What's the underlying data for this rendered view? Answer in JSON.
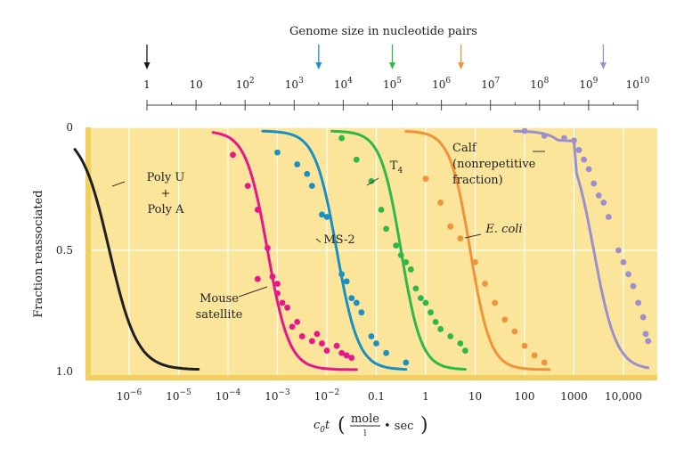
{
  "chart_data": {
    "type": "line",
    "genome_axis": {
      "title": "Genome size in nucleotide pairs",
      "ticks": [
        {
          "exp": 0,
          "base": "1",
          "sup": ""
        },
        {
          "exp": 1,
          "base": "10",
          "sup": ""
        },
        {
          "exp": 2,
          "base": "10",
          "sup": "2"
        },
        {
          "exp": 3,
          "base": "10",
          "sup": "3"
        },
        {
          "exp": 4,
          "base": "10",
          "sup": "4"
        },
        {
          "exp": 5,
          "base": "10",
          "sup": "5"
        },
        {
          "exp": 6,
          "base": "10",
          "sup": "6"
        },
        {
          "exp": 7,
          "base": "10",
          "sup": "7"
        },
        {
          "exp": 8,
          "base": "10",
          "sup": "8"
        },
        {
          "exp": 9,
          "base": "10",
          "sup": "9"
        },
        {
          "exp": 10,
          "base": "10",
          "sup": "10"
        }
      ],
      "markers": [
        {
          "log_size": 0,
          "color": "#1a1a1a"
        },
        {
          "log_size": 3.5,
          "color": "#1a8fc2"
        },
        {
          "log_size": 5,
          "color": "#2fb84a"
        },
        {
          "log_size": 6.4,
          "color": "#f0933b"
        },
        {
          "log_size": 9.3,
          "color": "#9b8fcc"
        }
      ]
    },
    "x_axis": {
      "label_main": "c",
      "label_sub": "0",
      "label_t": "t",
      "unit_num": "mole",
      "unit_den": "l",
      "unit_tail": "• sec",
      "scale": "log",
      "ticks": [
        {
          "log": -6,
          "base": "10",
          "sup": "−6"
        },
        {
          "log": -5,
          "base": "10",
          "sup": "−5"
        },
        {
          "log": -4,
          "base": "10",
          "sup": "−4"
        },
        {
          "log": -3,
          "base": "10",
          "sup": "−3"
        },
        {
          "log": -2,
          "base": "10",
          "sup": "−2"
        },
        {
          "log": -1,
          "base": "0.1",
          "sup": ""
        },
        {
          "log": 0,
          "base": "1",
          "sup": ""
        },
        {
          "log": 1,
          "base": "10",
          "sup": ""
        },
        {
          "log": 2,
          "base": "100",
          "sup": ""
        },
        {
          "log": 3,
          "base": "1000",
          "sup": ""
        },
        {
          "log": 4,
          "base": "10,000",
          "sup": ""
        }
      ]
    },
    "y_axis": {
      "label": "Fraction reassociated",
      "ticks": [
        {
          "value": 0,
          "text": "0"
        },
        {
          "value": 0.5,
          "text": "0.5"
        },
        {
          "value": 1.0,
          "text": "1.0"
        }
      ]
    },
    "colors": {
      "background": "#fbe59a",
      "grid": "#ffffff",
      "left_band": "#f2d060"
    },
    "series": [
      {
        "name": "Poly U + Poly A",
        "color": "#1f1f1f",
        "center": -6.4,
        "width": 0.62,
        "from": -7.1,
        "to": -4.6,
        "points": []
      },
      {
        "name": "Mouse satellite",
        "color": "#e8168a",
        "center": -3.2,
        "width": 0.48,
        "from": -4.3,
        "to": -1.4,
        "points": [
          [
            -3.9,
            0.1
          ],
          [
            -3.6,
            0.23
          ],
          [
            -3.4,
            0.33
          ],
          [
            -3.2,
            0.49
          ],
          [
            -3.1,
            0.61
          ],
          [
            -3.0,
            0.64
          ],
          [
            -2.9,
            0.72
          ],
          [
            -2.8,
            0.74
          ],
          [
            -2.7,
            0.82
          ],
          [
            -2.5,
            0.86
          ],
          [
            -2.3,
            0.88
          ],
          [
            -2.1,
            0.89
          ],
          [
            -2.0,
            0.92
          ],
          [
            -1.8,
            0.9
          ],
          [
            -1.7,
            0.93
          ],
          [
            -1.6,
            0.94
          ],
          [
            -1.5,
            0.95
          ],
          [
            -3.4,
            0.62
          ],
          [
            -3.0,
            0.68
          ],
          [
            -2.6,
            0.8
          ],
          [
            -2.2,
            0.85
          ]
        ]
      },
      {
        "name": "MS-2",
        "color": "#1a8fc2",
        "center": -1.8,
        "width": 0.48,
        "from": -3.3,
        "to": -0.4,
        "points": [
          [
            -3.0,
            0.09
          ],
          [
            -2.6,
            0.14
          ],
          [
            -2.4,
            0.18
          ],
          [
            -2.3,
            0.23
          ],
          [
            -2.1,
            0.35
          ],
          [
            -2.0,
            0.36
          ],
          [
            -1.7,
            0.6
          ],
          [
            -1.6,
            0.63
          ],
          [
            -1.5,
            0.7
          ],
          [
            -1.4,
            0.72
          ],
          [
            -1.3,
            0.76
          ],
          [
            -1.1,
            0.86
          ],
          [
            -1.0,
            0.89
          ],
          [
            -0.8,
            0.93
          ],
          [
            -0.4,
            0.97
          ]
        ]
      },
      {
        "name": "T4",
        "color": "#2fb84a",
        "center": -0.5,
        "width": 0.45,
        "from": -1.9,
        "to": 0.8,
        "points": [
          [
            -1.7,
            0.03
          ],
          [
            -1.4,
            0.12
          ],
          [
            -1.1,
            0.21
          ],
          [
            -0.9,
            0.33
          ],
          [
            -0.8,
            0.41
          ],
          [
            -0.6,
            0.48
          ],
          [
            -0.5,
            0.52
          ],
          [
            -0.4,
            0.55
          ],
          [
            -0.3,
            0.58
          ],
          [
            -0.2,
            0.66
          ],
          [
            -0.1,
            0.7
          ],
          [
            0.0,
            0.72
          ],
          [
            0.1,
            0.76
          ],
          [
            0.2,
            0.8
          ],
          [
            0.3,
            0.83
          ],
          [
            0.5,
            0.86
          ],
          [
            0.7,
            0.89
          ],
          [
            0.8,
            0.92
          ]
        ]
      },
      {
        "name": "E. coli",
        "color": "#f0933b",
        "center": 0.9,
        "width": 0.45,
        "from": -0.4,
        "to": 2.5,
        "points": [
          [
            0.0,
            0.2
          ],
          [
            0.3,
            0.3
          ],
          [
            0.5,
            0.4
          ],
          [
            0.7,
            0.45
          ],
          [
            1.0,
            0.55
          ],
          [
            1.2,
            0.64
          ],
          [
            1.4,
            0.72
          ],
          [
            1.6,
            0.79
          ],
          [
            1.8,
            0.84
          ],
          [
            2.0,
            0.9
          ],
          [
            2.2,
            0.94
          ],
          [
            2.4,
            0.97
          ]
        ]
      },
      {
        "name": "Calf (nonrepetitive fraction)",
        "color": "#9b8fcc",
        "center": 3.4,
        "width": 0.5,
        "from": 1.8,
        "to": 4.5,
        "points": [
          [
            2.0,
            0.0
          ],
          [
            2.4,
            0.02
          ],
          [
            2.8,
            0.03
          ],
          [
            3.0,
            0.04
          ],
          [
            3.1,
            0.08
          ],
          [
            3.2,
            0.12
          ],
          [
            3.3,
            0.16
          ],
          [
            3.4,
            0.22
          ],
          [
            3.5,
            0.27
          ],
          [
            3.6,
            0.3
          ],
          [
            3.7,
            0.36
          ],
          [
            3.9,
            0.5
          ],
          [
            4.0,
            0.55
          ],
          [
            4.1,
            0.6
          ],
          [
            4.2,
            0.65
          ],
          [
            4.3,
            0.72
          ],
          [
            4.4,
            0.78
          ],
          [
            4.45,
            0.85
          ],
          [
            4.5,
            0.88
          ]
        ]
      }
    ],
    "labels": [
      {
        "lines": [
          "Poly U",
          "+",
          "Poly A"
        ],
        "series": 0
      },
      {
        "lines": [
          "Mouse",
          "satellite"
        ],
        "series": 1
      },
      {
        "lines": [
          "MS-2"
        ],
        "series": 2
      },
      {
        "lines": [
          "T"
        ],
        "sub": "4",
        "series": 3
      },
      {
        "lines": [
          "E. coli"
        ],
        "italic": true,
        "series": 4
      },
      {
        "lines": [
          "Calf",
          "(nonrepetitive",
          "fraction)"
        ],
        "series": 5
      }
    ],
    "ylim": [
      0,
      1.0
    ],
    "grid": true
  }
}
